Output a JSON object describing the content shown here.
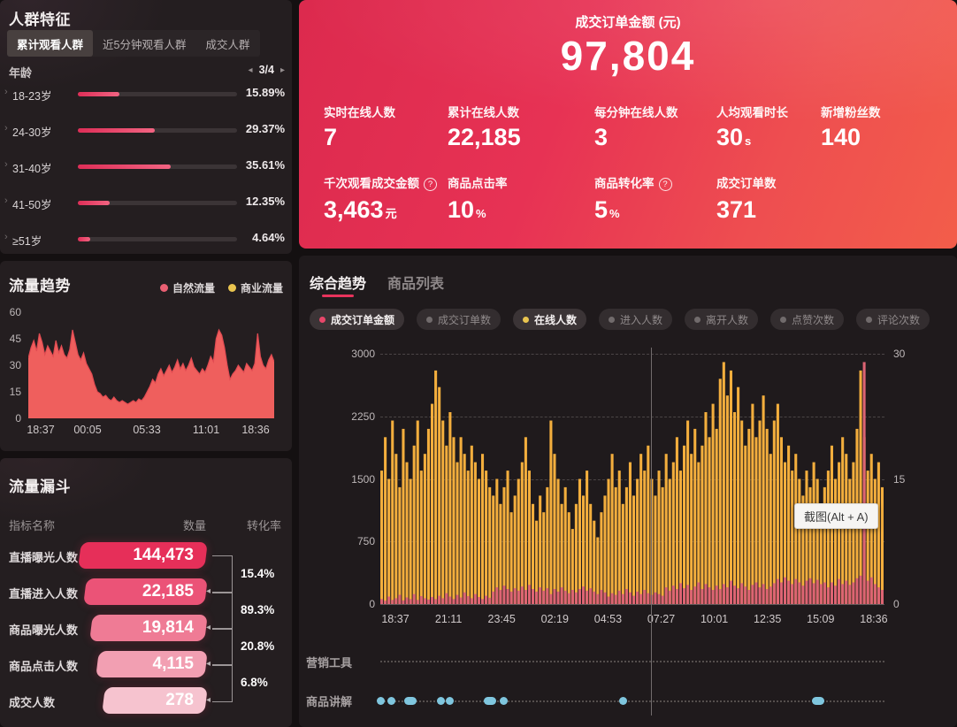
{
  "colors": {
    "accent_pink": "#e8335c",
    "yellow": "#f3ae3d",
    "bar_pink": "#dd6473",
    "cyan": "#7fc6de",
    "panel": "#241e20"
  },
  "audience_panel": {
    "title": "人群特征",
    "tabs": [
      {
        "label": "累计观看人群",
        "active": true
      },
      {
        "label": "近5分钟观看人群",
        "active": false
      },
      {
        "label": "成交人群",
        "active": false
      }
    ],
    "dimension": "年龄",
    "page": "3/4",
    "prev": "◂",
    "next": "▸"
  },
  "traffic_panel": {
    "title": "流量趋势",
    "legend": [
      {
        "label": "自然流量",
        "color": "#e95f72"
      },
      {
        "label": "商业流量",
        "color": "#e9c44f"
      }
    ]
  },
  "funnel_panel": {
    "title": "流量漏斗",
    "headers": [
      "指标名称",
      "数量",
      "转化率"
    ]
  },
  "summary_panel": {
    "header_label": "成交订单金额 (元)",
    "header_value": "97,804",
    "metrics_row1": [
      {
        "label": "实时在线人数",
        "value": "7",
        "suffix": "",
        "help": false
      },
      {
        "label": "累计在线人数",
        "value": "22,185",
        "suffix": "",
        "help": false
      },
      {
        "label": "每分钟在线人数",
        "value": "3",
        "suffix": "",
        "help": false
      },
      {
        "label": "人均观看时长",
        "value": "30",
        "suffix": "s",
        "help": false
      },
      {
        "label": "新增粉丝数",
        "value": "140",
        "suffix": "",
        "help": false
      }
    ],
    "metrics_row2": [
      {
        "label": "千次观看成交金额",
        "value": "3,463",
        "suffix": "元",
        "help": true
      },
      {
        "label": "商品点击率",
        "value": "10",
        "suffix": "%",
        "help": false
      },
      {
        "label": "商品转化率",
        "value": "5",
        "suffix": "%",
        "help": true
      },
      {
        "label": "成交订单数",
        "value": "371",
        "suffix": "",
        "help": false
      }
    ]
  },
  "trend_panel": {
    "tabs": [
      {
        "label": "综合趋势",
        "active": true
      },
      {
        "label": "商品列表",
        "active": false
      }
    ],
    "chips": [
      {
        "label": "成交订单金额",
        "dot": "#e8476a",
        "active": true
      },
      {
        "label": "成交订单数",
        "dot": "#716b6c",
        "active": false
      },
      {
        "label": "在线人数",
        "dot": "#e9c44f",
        "active": true
      },
      {
        "label": "进入人数",
        "dot": "#716b6c",
        "active": false
      },
      {
        "label": "离开人数",
        "dot": "#716b6c",
        "active": false
      },
      {
        "label": "点赞次数",
        "dot": "#716b6c",
        "active": false
      },
      {
        "label": "评论次数",
        "dot": "#716b6c",
        "active": false
      }
    ],
    "tooltip": "截图(Alt + A)",
    "marketing_label": "营销工具",
    "explain_label": "商品讲解",
    "explain_dots": [
      {
        "x": 0.0,
        "w": 1
      },
      {
        "x": 0.022,
        "w": 1
      },
      {
        "x": 0.06,
        "w": 1.6
      },
      {
        "x": 0.121,
        "w": 1
      },
      {
        "x": 0.138,
        "w": 1
      },
      {
        "x": 0.218,
        "w": 1.6
      },
      {
        "x": 0.245,
        "w": 1
      },
      {
        "x": 0.482,
        "w": 1
      },
      {
        "x": 0.868,
        "w": 1.6
      }
    ]
  },
  "chart_data": [
    {
      "id": "audience_age",
      "type": "bar",
      "title": "人群特征 - 年龄",
      "unit": "%",
      "categories": [
        "18-23岁",
        "24-30岁",
        "31-40岁",
        "41-50岁",
        "≥51岁"
      ],
      "values": [
        15.89,
        29.37,
        35.61,
        12.35,
        4.64
      ],
      "labels": [
        "15.89%",
        "29.37%",
        "35.61%",
        "12.35%",
        "4.64%"
      ]
    },
    {
      "id": "traffic_trend",
      "type": "area",
      "title": "流量趋势",
      "ylim": [
        0,
        60
      ],
      "yticks": [
        0,
        15,
        30,
        45,
        60
      ],
      "xticks": [
        "18:37",
        "00:05",
        "05:33",
        "11:01",
        "18:36"
      ],
      "series": [
        {
          "name": "自然流量",
          "color": "#ef5f5d",
          "values": [
            34,
            40,
            44,
            38,
            48,
            43,
            36,
            41,
            38,
            35,
            44,
            37,
            41,
            36,
            34,
            39,
            50,
            43,
            36,
            33,
            37,
            31,
            28,
            25,
            19,
            15,
            14,
            12,
            13,
            11,
            10,
            12,
            10,
            9,
            10,
            9,
            8,
            9,
            10,
            9,
            11,
            10,
            12,
            15,
            18,
            22,
            20,
            25,
            28,
            24,
            27,
            30,
            26,
            29,
            33,
            28,
            31,
            27,
            30,
            34,
            29,
            27,
            25,
            28,
            26,
            30,
            35,
            32,
            45,
            50,
            47,
            40,
            30,
            22,
            25,
            27,
            30,
            28,
            26,
            31,
            29,
            27,
            31,
            48,
            35,
            30,
            28,
            33,
            36,
            32
          ]
        },
        {
          "name": "商业流量",
          "color": "#e9c44f",
          "values": []
        }
      ]
    },
    {
      "id": "funnel",
      "type": "funnel",
      "title": "流量漏斗",
      "rows": [
        {
          "label": "直播曝光人数",
          "value": "144,473"
        },
        {
          "label": "直播进入人数",
          "value": "22,185"
        },
        {
          "label": "商品曝光人数",
          "value": "19,814"
        },
        {
          "label": "商品点击人数",
          "value": "4,115"
        },
        {
          "label": "成交人数",
          "value": "278"
        }
      ],
      "conversions": [
        "15.4%",
        "89.3%",
        "20.8%",
        "6.8%"
      ],
      "bar_colors": [
        "#e62f59",
        "#eb5377",
        "#ef7b95",
        "#f29fb2",
        "#f6c3cf"
      ]
    },
    {
      "id": "composite_trend",
      "type": "bar",
      "title": "综合趋势",
      "xticks": [
        "18:37",
        "21:11",
        "23:45",
        "02:19",
        "04:53",
        "07:27",
        "10:01",
        "12:35",
        "15:09",
        "18:36"
      ],
      "left_axis": {
        "name": "成交订单金额",
        "min": 0,
        "max": 3000,
        "ticks": [
          0,
          750,
          1500,
          2250,
          3000
        ]
      },
      "right_axis": {
        "name": "在线人数",
        "min": 0,
        "max": 30,
        "ticks": [
          0,
          15,
          30
        ]
      },
      "series": [
        {
          "name": "在线人数",
          "axis": "right",
          "color": "#f3ae3d",
          "values": [
            16,
            20,
            15,
            22,
            18,
            14,
            21,
            17,
            15,
            19,
            22,
            16,
            18,
            21,
            24,
            28,
            26,
            22,
            19,
            23,
            20,
            17,
            20,
            18,
            16,
            19,
            17,
            15,
            18,
            16,
            14,
            13,
            15,
            12,
            14,
            16,
            11,
            13,
            15,
            17,
            20,
            16,
            12,
            10,
            13,
            11,
            14,
            22,
            18,
            15,
            12,
            14,
            11,
            9,
            12,
            15,
            13,
            16,
            12,
            10,
            8,
            11,
            13,
            15,
            18,
            14,
            16,
            12,
            14,
            17,
            13,
            15,
            18,
            16,
            19,
            15,
            13,
            16,
            14,
            18,
            15,
            17,
            20,
            16,
            19,
            22,
            18,
            21,
            17,
            19,
            23,
            20,
            24,
            21,
            27,
            29,
            25,
            28,
            23,
            26,
            22,
            19,
            21,
            24,
            20,
            22,
            25,
            21,
            18,
            22,
            24,
            20,
            17,
            19,
            16,
            18,
            15,
            13,
            16,
            14,
            17,
            15,
            12,
            14,
            16,
            19,
            15,
            17,
            20,
            18,
            15,
            17,
            21,
            28,
            20,
            16,
            18,
            15,
            17,
            14
          ]
        },
        {
          "name": "成交订单金额",
          "axis": "left",
          "color": "#dd6473",
          "values": [
            60,
            40,
            90,
            50,
            70,
            110,
            45,
            80,
            60,
            120,
            50,
            95,
            70,
            55,
            85,
            60,
            100,
            70,
            130,
            90,
            60,
            110,
            80,
            140,
            95,
            70,
            120,
            85,
            60,
            100,
            75,
            150,
            200,
            170,
            220,
            180,
            150,
            190,
            160,
            210,
            170,
            230,
            180,
            150,
            200,
            160,
            190,
            120,
            180,
            150,
            200,
            160,
            130,
            170,
            140,
            180,
            210,
            160,
            190,
            150,
            120,
            170,
            140,
            90,
            130,
            110,
            160,
            120,
            180,
            140,
            100,
            150,
            120,
            170,
            130,
            110,
            140,
            120,
            100,
            200,
            160,
            220,
            180,
            250,
            190,
            230,
            170,
            210,
            260,
            180,
            240,
            200,
            170,
            220,
            180,
            240,
            200,
            280,
            220,
            190,
            250,
            210,
            170,
            230,
            260,
            200,
            240,
            180,
            210,
            250,
            300,
            260,
            320,
            280,
            240,
            300,
            260,
            220,
            280,
            310,
            250,
            290,
            240,
            260,
            200,
            260,
            220,
            300,
            240,
            280,
            230,
            260,
            310,
            340,
            2900,
            280,
            320,
            240,
            200,
            170
          ]
        }
      ]
    }
  ]
}
